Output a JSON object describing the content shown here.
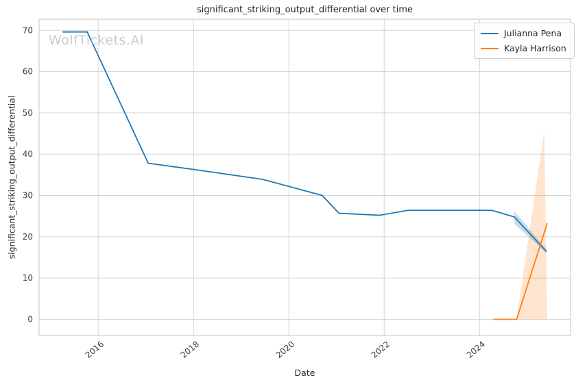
{
  "title": "significant_striking_output_differential over time",
  "watermark": "WolfTickets.AI",
  "axes": {
    "xlabel": "Date",
    "ylabel": "significant_striking_output_differential"
  },
  "legend": {
    "entries": [
      {
        "label": "Julianna Pena",
        "color": "#1f77b4"
      },
      {
        "label": "Kayla Harrison",
        "color": "#ff7f0e"
      }
    ]
  },
  "colors": {
    "grid": "#d5d5d5",
    "spine": "#c6c6c6",
    "text": "#262626",
    "watermark": "#c2c2c8"
  },
  "chart_data": {
    "type": "line",
    "title": "significant_striking_output_differential over time",
    "xlabel": "Date",
    "ylabel": "significant_striking_output_differential",
    "grid": true,
    "legend_position": "upper right",
    "xlim": [
      2014.76,
      2025.91
    ],
    "ylim": [
      -3.9,
      72.7
    ],
    "x_ticks": [
      2016,
      2018,
      2020,
      2022,
      2024
    ],
    "x_tick_rotation": 40,
    "y_ticks": [
      0,
      10,
      20,
      30,
      40,
      50,
      60,
      70
    ],
    "series": [
      {
        "name": "Julianna Pena",
        "color": "#1f77b4",
        "x": [
          2015.26,
          2015.77,
          2017.05,
          2018.0,
          2019.45,
          2020.7,
          2021.05,
          2021.9,
          2022.5,
          2024.26,
          2024.73,
          2025.4
        ],
        "y": [
          69.6,
          69.6,
          37.8,
          36.3,
          33.9,
          30.0,
          25.7,
          25.2,
          26.4,
          26.4,
          24.8,
          16.5
        ],
        "band": {
          "fill": "rgba(31,119,180,0.25)",
          "x": [
            2024.73,
            2025.4
          ],
          "upper": [
            26.2,
            17.1
          ],
          "lower": [
            23.2,
            16.0
          ]
        }
      },
      {
        "name": "Kayla Harrison",
        "color": "#ff7f0e",
        "x": [
          2024.3,
          2024.78,
          2025.42
        ],
        "y": [
          0,
          0,
          23.2
        ],
        "band": {
          "fill": "rgba(255,127,14,0.2)",
          "x": [
            2024.78,
            2025.36,
            2025.42
          ],
          "upper": [
            0,
            45.8,
            0.8
          ],
          "lower": [
            0,
            0,
            0
          ]
        }
      }
    ]
  }
}
